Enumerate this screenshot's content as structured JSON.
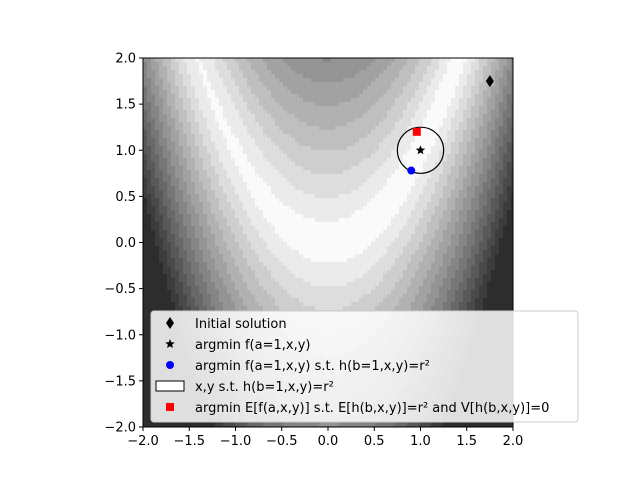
{
  "chart_data": {
    "type": "contour",
    "title": "",
    "xlabel": "",
    "ylabel": "",
    "xlim": [
      -2.0,
      2.0
    ],
    "ylim": [
      -2.0,
      2.0
    ],
    "xticks": [
      -2.0,
      -1.5,
      -1.0,
      -0.5,
      0.0,
      0.5,
      1.0,
      1.5,
      2.0
    ],
    "yticks": [
      -2.0,
      -1.5,
      -1.0,
      -0.5,
      0.0,
      0.5,
      1.0,
      1.5,
      2.0
    ],
    "xtick_labels": [
      "−2.0",
      "−1.5",
      "−1.0",
      "−0.5",
      "0.0",
      "0.5",
      "1.0",
      "1.5",
      "2.0"
    ],
    "ytick_labels": [
      "−2.0",
      "−1.5",
      "−1.0",
      "−0.5",
      "0.0",
      "0.5",
      "1.0",
      "1.5",
      "2.0"
    ],
    "grid": false,
    "legend_position": "lower-right",
    "background": "filled contours of f(a=1,x,y) = (a−x)² + b(y−x²)², grayscale",
    "markers": [
      {
        "name": "initial-solution",
        "label": "Initial solution",
        "marker": "diamond",
        "color": "#000000",
        "x": 1.75,
        "y": 1.75
      },
      {
        "name": "argmin-f",
        "label": "argmin f(a=1,x,y)",
        "marker": "star",
        "color": "#000000",
        "x": 1.0,
        "y": 1.0
      },
      {
        "name": "argmin-constrained",
        "label": "argmin f(a=1,x,y) s.t. h(b=1,x,y)=r²",
        "marker": "circle",
        "color": "#0000ff",
        "x": 0.9,
        "y": 0.78
      },
      {
        "name": "argmin-expected",
        "label": "argmin E[f(a,x,y)] s.t. E[h(b,x,y)]=r² and V[h(b,x,y)]=0",
        "marker": "square",
        "color": "#ff0000",
        "x": 0.96,
        "y": 1.2
      }
    ],
    "circle": {
      "label": "x,y s.t. h(b=1,x,y)=r²",
      "center": [
        1.0,
        1.0
      ],
      "radius": 0.25,
      "color": "#000000"
    },
    "legend": [
      {
        "label": "Initial solution",
        "marker": "diamond"
      },
      {
        "label": "argmin f(a=1,x,y)",
        "marker": "star"
      },
      {
        "label": "argmin f(a=1,x,y) s.t. h(b=1,x,y)=r²",
        "marker": "circle"
      },
      {
        "label": "x,y s.t. h(b=1,x,y)=r²",
        "marker": "patch"
      },
      {
        "label": "argmin E[f(a,x,y)] s.t. E[h(b,x,y)]=r² and V[h(b,x,y)]=0",
        "marker": "square"
      }
    ]
  }
}
